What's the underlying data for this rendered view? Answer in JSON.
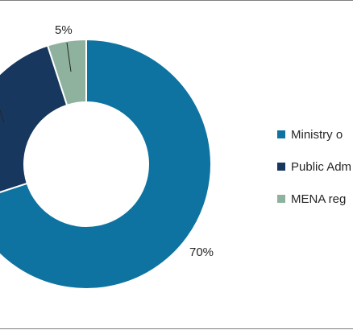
{
  "chart_data": {
    "type": "pie",
    "variant": "donut",
    "title": "",
    "series": [
      {
        "name": "Ministry o",
        "value": 70,
        "label": "70%",
        "color": "#0E73A0"
      },
      {
        "name": "Public Adm",
        "value": null,
        "label": "",
        "color": "#17375E"
      },
      {
        "name": "MENA reg",
        "value": 5,
        "label": "5%",
        "color": "#8FB29F"
      }
    ],
    "legend_position": "right",
    "visible_slice_values": [
      70,
      25,
      5
    ]
  }
}
